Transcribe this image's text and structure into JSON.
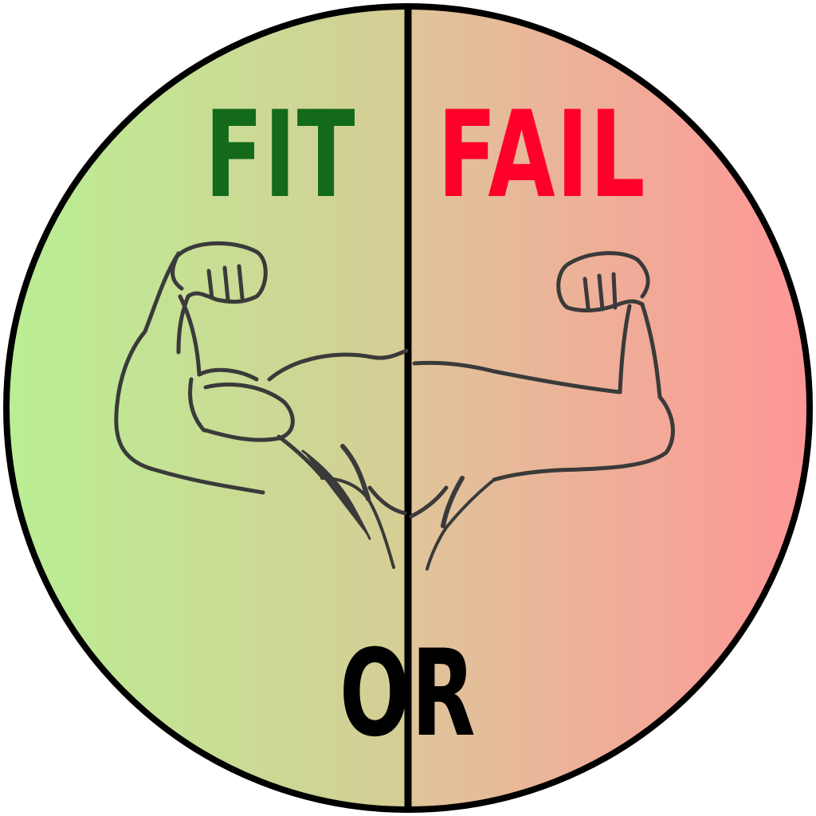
{
  "badge": {
    "left_word": "FIT",
    "right_word": "FAIL",
    "bottom_word": "OR"
  },
  "colors": {
    "left_word": "#136a1b",
    "right_word": "#ff002a",
    "bottom_word": "#000000",
    "left_bg_start": "#b9ef94",
    "left_bg_end": "#d6cd95",
    "right_bg_start": "#dfc59a",
    "right_bg_end": "#ff9696",
    "outline": "#000000",
    "arm_stroke": "#3a3a3a"
  },
  "icons": [
    "flexed-arm-left-icon",
    "flexed-arm-right-icon"
  ]
}
